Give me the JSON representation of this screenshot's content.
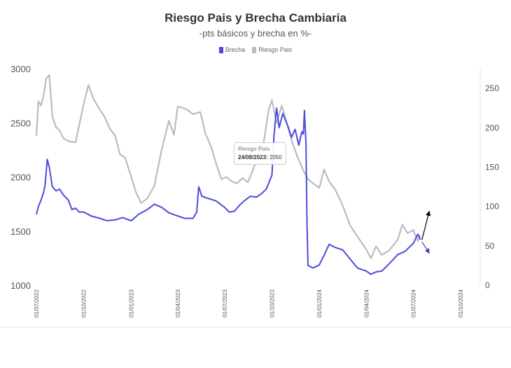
{
  "chart_data": {
    "type": "line",
    "title": "Riesgo Pais y Brecha Cambiaria",
    "subtitle": "-pts básicos y brecha en %-",
    "legend_position": "top-center",
    "grid": false,
    "left_axis": {
      "series": "Riesgo Pais",
      "range": [
        1000,
        3000
      ],
      "ticks": [
        "3000",
        "2500",
        "2000",
        "1500",
        "1000"
      ]
    },
    "right_axis": {
      "series": "Brecha",
      "range": [
        0,
        275
      ],
      "ticks": [
        "250",
        "200",
        "150",
        "100",
        "50",
        "0"
      ]
    },
    "x_range": [
      "2022-07-01",
      "2024-10-01"
    ],
    "x_ticks": [
      "01/07/2022",
      "01/10/2022",
      "01/01/2023",
      "01/04/2023",
      "01/07/2023",
      "01/10/2023",
      "01/01/2024",
      "01/04/2024",
      "01/07/2024",
      "01/10/2024"
    ],
    "series": [
      {
        "name": "Brecha",
        "axis": "right",
        "color": "#4b4bdc",
        "points": [
          [
            "2022-07-01",
            90
          ],
          [
            "2022-07-05",
            100
          ],
          [
            "2022-07-10",
            108
          ],
          [
            "2022-07-15",
            118
          ],
          [
            "2022-07-18",
            128
          ],
          [
            "2022-07-22",
            160
          ],
          [
            "2022-07-26",
            150
          ],
          [
            "2022-08-01",
            125
          ],
          [
            "2022-08-08",
            120
          ],
          [
            "2022-08-15",
            122
          ],
          [
            "2022-08-22",
            115
          ],
          [
            "2022-09-01",
            108
          ],
          [
            "2022-09-08",
            96
          ],
          [
            "2022-09-15",
            98
          ],
          [
            "2022-09-22",
            93
          ],
          [
            "2022-10-01",
            93
          ],
          [
            "2022-10-15",
            88
          ],
          [
            "2022-11-01",
            85
          ],
          [
            "2022-11-15",
            82
          ],
          [
            "2022-12-01",
            83
          ],
          [
            "2022-12-15",
            86
          ],
          [
            "2023-01-01",
            82
          ],
          [
            "2023-01-15",
            90
          ],
          [
            "2023-02-01",
            96
          ],
          [
            "2023-02-15",
            103
          ],
          [
            "2023-03-01",
            99
          ],
          [
            "2023-03-15",
            92
          ],
          [
            "2023-04-01",
            88
          ],
          [
            "2023-04-15",
            85
          ],
          [
            "2023-05-01",
            85
          ],
          [
            "2023-05-08",
            93
          ],
          [
            "2023-05-12",
            125
          ],
          [
            "2023-05-18",
            113
          ],
          [
            "2023-06-01",
            110
          ],
          [
            "2023-06-15",
            107
          ],
          [
            "2023-07-01",
            99
          ],
          [
            "2023-07-10",
            93
          ],
          [
            "2023-07-20",
            94
          ],
          [
            "2023-08-01",
            103
          ],
          [
            "2023-08-10",
            108
          ],
          [
            "2023-08-20",
            113
          ],
          [
            "2023-09-01",
            112
          ],
          [
            "2023-09-10",
            116
          ],
          [
            "2023-09-20",
            122
          ],
          [
            "2023-10-01",
            140
          ],
          [
            "2023-10-05",
            190
          ],
          [
            "2023-10-10",
            225
          ],
          [
            "2023-10-15",
            200
          ],
          [
            "2023-10-22",
            218
          ],
          [
            "2023-11-01",
            202
          ],
          [
            "2023-11-08",
            188
          ],
          [
            "2023-11-15",
            198
          ],
          [
            "2023-11-22",
            178
          ],
          [
            "2023-11-28",
            195
          ],
          [
            "2023-12-01",
            192
          ],
          [
            "2023-12-03",
            222
          ],
          [
            "2023-12-06",
            180
          ],
          [
            "2023-12-08",
            78
          ],
          [
            "2023-12-10",
            25
          ],
          [
            "2023-12-20",
            22
          ],
          [
            "2024-01-01",
            26
          ],
          [
            "2024-01-10",
            38
          ],
          [
            "2024-01-20",
            52
          ],
          [
            "2024-02-01",
            48
          ],
          [
            "2024-02-15",
            45
          ],
          [
            "2024-03-01",
            33
          ],
          [
            "2024-03-15",
            22
          ],
          [
            "2024-04-01",
            18
          ],
          [
            "2024-04-10",
            14
          ],
          [
            "2024-04-20",
            17
          ],
          [
            "2024-05-01",
            18
          ],
          [
            "2024-05-15",
            27
          ],
          [
            "2024-06-01",
            39
          ],
          [
            "2024-06-15",
            43
          ],
          [
            "2024-07-01",
            53
          ],
          [
            "2024-07-10",
            65
          ],
          [
            "2024-07-15",
            58
          ]
        ]
      },
      {
        "name": "Riesgo Pais",
        "axis": "left",
        "color": "#b9bcbf",
        "points": [
          [
            "2022-07-01",
            2380
          ],
          [
            "2022-07-05",
            2700
          ],
          [
            "2022-07-10",
            2660
          ],
          [
            "2022-07-15",
            2750
          ],
          [
            "2022-07-20",
            2910
          ],
          [
            "2022-07-26",
            2940
          ],
          [
            "2022-08-01",
            2560
          ],
          [
            "2022-08-08",
            2460
          ],
          [
            "2022-08-15",
            2430
          ],
          [
            "2022-08-22",
            2360
          ],
          [
            "2022-09-01",
            2330
          ],
          [
            "2022-09-15",
            2320
          ],
          [
            "2022-10-01",
            2680
          ],
          [
            "2022-10-10",
            2850
          ],
          [
            "2022-10-20",
            2720
          ],
          [
            "2022-11-01",
            2620
          ],
          [
            "2022-11-10",
            2560
          ],
          [
            "2022-11-20",
            2450
          ],
          [
            "2022-12-01",
            2380
          ],
          [
            "2022-12-10",
            2210
          ],
          [
            "2022-12-20",
            2180
          ],
          [
            "2023-01-01",
            2000
          ],
          [
            "2023-01-10",
            1860
          ],
          [
            "2023-01-20",
            1760
          ],
          [
            "2023-02-01",
            1800
          ],
          [
            "2023-02-15",
            1920
          ],
          [
            "2023-03-01",
            2250
          ],
          [
            "2023-03-15",
            2520
          ],
          [
            "2023-03-25",
            2390
          ],
          [
            "2023-04-01",
            2650
          ],
          [
            "2023-04-10",
            2640
          ],
          [
            "2023-04-20",
            2620
          ],
          [
            "2023-05-01",
            2580
          ],
          [
            "2023-05-15",
            2600
          ],
          [
            "2023-05-25",
            2400
          ],
          [
            "2023-06-05",
            2280
          ],
          [
            "2023-06-15",
            2120
          ],
          [
            "2023-06-25",
            1980
          ],
          [
            "2023-07-05",
            2000
          ],
          [
            "2023-07-15",
            1960
          ],
          [
            "2023-07-25",
            1940
          ],
          [
            "2023-08-05",
            1990
          ],
          [
            "2023-08-15",
            1950
          ],
          [
            "2023-08-24",
            2050
          ],
          [
            "2023-09-01",
            2150
          ],
          [
            "2023-09-15",
            2320
          ],
          [
            "2023-09-25",
            2630
          ],
          [
            "2023-10-01",
            2710
          ],
          [
            "2023-10-10",
            2500
          ],
          [
            "2023-10-20",
            2660
          ],
          [
            "2023-11-01",
            2460
          ],
          [
            "2023-11-10",
            2310
          ],
          [
            "2023-11-20",
            2180
          ],
          [
            "2023-12-01",
            2060
          ],
          [
            "2023-12-10",
            1980
          ],
          [
            "2023-12-20",
            1940
          ],
          [
            "2024-01-01",
            1900
          ],
          [
            "2024-01-10",
            2070
          ],
          [
            "2024-01-20",
            1960
          ],
          [
            "2024-02-01",
            1880
          ],
          [
            "2024-02-15",
            1740
          ],
          [
            "2024-03-01",
            1550
          ],
          [
            "2024-03-15",
            1450
          ],
          [
            "2024-04-01",
            1330
          ],
          [
            "2024-04-10",
            1250
          ],
          [
            "2024-04-20",
            1360
          ],
          [
            "2024-05-01",
            1280
          ],
          [
            "2024-05-15",
            1320
          ],
          [
            "2024-06-01",
            1420
          ],
          [
            "2024-06-10",
            1560
          ],
          [
            "2024-06-20",
            1480
          ],
          [
            "2024-07-01",
            1510
          ],
          [
            "2024-07-10",
            1410
          ],
          [
            "2024-07-15",
            1460
          ]
        ]
      }
    ],
    "tooltip": {
      "series": "Riesgo Pais",
      "date": "24/08/2023:",
      "value": "2050"
    },
    "annotations": [
      {
        "type": "arrow",
        "color": "#000000",
        "from": [
          "2024-07-18",
          1420
        ],
        "to": [
          "2024-08-01",
          1680
        ]
      },
      {
        "type": "arrow",
        "color": "#3a3acc",
        "from": [
          "2024-07-18",
          1400
        ],
        "to": [
          "2024-08-01",
          1300
        ]
      }
    ]
  }
}
